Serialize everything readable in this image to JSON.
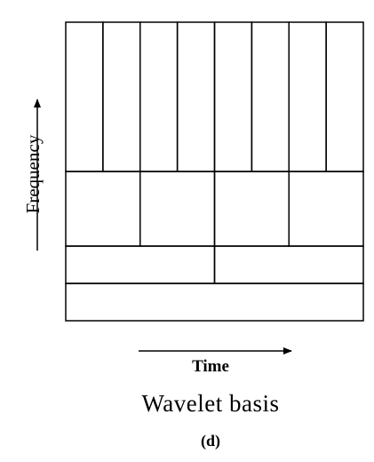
{
  "figure": {
    "ylabel": "Frequency",
    "xlabel": "Time",
    "caption": "Wavelet basis",
    "panel_label": "(d)"
  },
  "tiling": {
    "time_range": [
      0,
      1
    ],
    "frequency_range": [
      0,
      1
    ],
    "bands": [
      {
        "frequency_range": [
          0.0,
          0.125
        ],
        "time_cells": 1
      },
      {
        "frequency_range": [
          0.125,
          0.25
        ],
        "time_cells": 2
      },
      {
        "frequency_range": [
          0.25,
          0.5
        ],
        "time_cells": 4
      },
      {
        "frequency_range": [
          0.5,
          1.0
        ],
        "time_cells": 8
      }
    ],
    "line_color": "#000000"
  }
}
